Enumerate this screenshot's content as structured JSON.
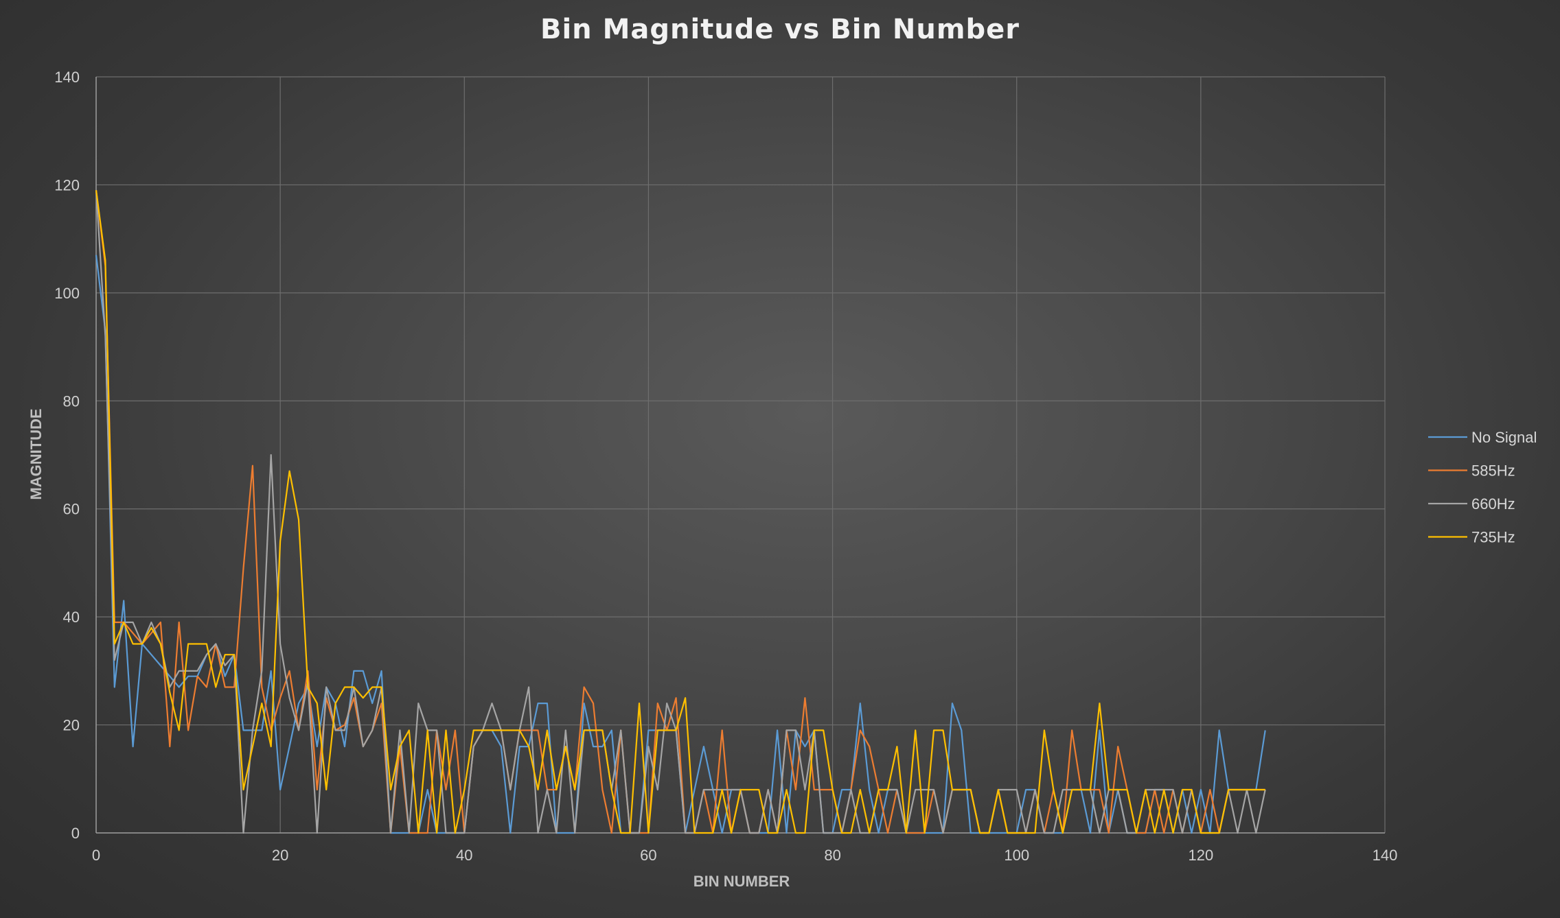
{
  "chart_data": {
    "type": "line",
    "title": "Bin Magnitude vs Bin Number",
    "xlabel": "BIN NUMBER",
    "ylabel": "MAGNITUDE",
    "xlim": [
      0,
      140
    ],
    "ylim": [
      0,
      140
    ],
    "xticks": [
      "0",
      "20",
      "40",
      "60",
      "80",
      "100",
      "120",
      "140"
    ],
    "yticks": [
      "0",
      "20",
      "40",
      "60",
      "80",
      "100",
      "120",
      "140"
    ],
    "grid": true,
    "legend_position": "right",
    "series": [
      {
        "name": "No Signal",
        "color": "#5b9bd5",
        "values": [
          107,
          93,
          27,
          43,
          16,
          35,
          33,
          31,
          29,
          27,
          29,
          29,
          33,
          35,
          29,
          33,
          19,
          19,
          19,
          30,
          8,
          16,
          24,
          27,
          16,
          27,
          24,
          16,
          30,
          30,
          24,
          30,
          0,
          0,
          0,
          0,
          8,
          0,
          0,
          0,
          0,
          16,
          19,
          19,
          16,
          0,
          16,
          16,
          24,
          24,
          0,
          0,
          0,
          24,
          16,
          16,
          19,
          0,
          0,
          0,
          19,
          19,
          19,
          19,
          0,
          8,
          16,
          8,
          0,
          8,
          8,
          0,
          0,
          0,
          19,
          0,
          19,
          16,
          19,
          0,
          0,
          8,
          8,
          24,
          8,
          0,
          8,
          8,
          0,
          0,
          0,
          0,
          0,
          24,
          19,
          0,
          0,
          0,
          0,
          0,
          0,
          8,
          8,
          0,
          0,
          0,
          8,
          8,
          0,
          19,
          0,
          8,
          0,
          0,
          0,
          8,
          8,
          0,
          8,
          0,
          8,
          0,
          19,
          8,
          8,
          8,
          8,
          19
        ]
      },
      {
        "name": "585Hz",
        "color": "#ed7d31",
        "values": [
          119,
          105,
          39,
          39,
          37,
          35,
          37,
          39,
          16,
          39,
          19,
          29,
          27,
          35,
          27,
          27,
          49,
          68,
          27,
          19,
          25,
          30,
          19,
          30,
          8,
          25,
          19,
          20,
          25,
          16,
          19,
          24,
          0,
          16,
          0,
          0,
          0,
          19,
          8,
          19,
          0,
          16,
          19,
          19,
          19,
          8,
          19,
          19,
          19,
          8,
          8,
          16,
          8,
          27,
          24,
          8,
          0,
          19,
          0,
          0,
          0,
          24,
          19,
          25,
          0,
          0,
          8,
          0,
          19,
          0,
          8,
          0,
          0,
          8,
          0,
          19,
          8,
          25,
          8,
          8,
          8,
          0,
          8,
          19,
          16,
          8,
          0,
          8,
          0,
          0,
          0,
          8,
          0,
          8,
          8,
          8,
          0,
          0,
          8,
          0,
          0,
          0,
          8,
          0,
          8,
          0,
          19,
          8,
          8,
          8,
          0,
          16,
          8,
          0,
          0,
          8,
          0,
          8,
          0,
          8,
          0,
          8,
          0,
          8,
          8,
          8,
          8,
          8
        ]
      },
      {
        "name": "660Hz",
        "color": "#a5a5a5",
        "values": [
          119,
          92,
          32,
          39,
          39,
          35,
          39,
          35,
          27,
          30,
          30,
          30,
          33,
          35,
          31,
          33,
          0,
          19,
          30,
          70,
          35,
          25,
          19,
          28,
          0,
          27,
          19,
          19,
          27,
          16,
          19,
          27,
          0,
          19,
          0,
          24,
          19,
          19,
          0,
          0,
          0,
          16,
          19,
          24,
          19,
          8,
          19,
          27,
          0,
          8,
          0,
          19,
          0,
          19,
          19,
          19,
          8,
          19,
          0,
          0,
          16,
          8,
          24,
          19,
          0,
          0,
          8,
          8,
          8,
          8,
          8,
          0,
          0,
          8,
          0,
          19,
          19,
          8,
          19,
          0,
          0,
          0,
          8,
          0,
          0,
          8,
          8,
          8,
          0,
          8,
          8,
          8,
          0,
          8,
          8,
          8,
          0,
          0,
          8,
          8,
          8,
          0,
          8,
          0,
          0,
          8,
          8,
          8,
          8,
          0,
          8,
          8,
          0,
          0,
          8,
          8,
          8,
          8,
          0,
          8,
          0,
          0,
          0,
          8,
          0,
          8,
          0,
          8
        ]
      },
      {
        "name": "735Hz",
        "color": "#ffc000",
        "values": [
          119,
          106,
          35,
          39,
          35,
          35,
          38,
          35,
          26,
          19,
          35,
          35,
          35,
          27,
          33,
          33,
          8,
          16,
          24,
          16,
          54,
          67,
          58,
          27,
          24,
          8,
          24,
          27,
          27,
          25,
          27,
          27,
          8,
          16,
          19,
          0,
          19,
          0,
          19,
          0,
          8,
          19,
          19,
          19,
          19,
          19,
          19,
          16,
          8,
          19,
          8,
          16,
          8,
          19,
          19,
          19,
          8,
          0,
          0,
          24,
          0,
          19,
          19,
          19,
          25,
          0,
          0,
          0,
          8,
          0,
          8,
          8,
          8,
          0,
          0,
          8,
          0,
          0,
          19,
          19,
          8,
          0,
          0,
          8,
          0,
          8,
          8,
          16,
          0,
          19,
          0,
          19,
          19,
          8,
          8,
          8,
          0,
          0,
          8,
          0,
          0,
          0,
          0,
          19,
          8,
          0,
          8,
          8,
          8,
          24,
          8,
          8,
          8,
          0,
          8,
          0,
          8,
          0,
          8,
          8,
          0,
          0,
          0,
          8,
          8,
          8,
          8,
          8
        ]
      }
    ]
  }
}
